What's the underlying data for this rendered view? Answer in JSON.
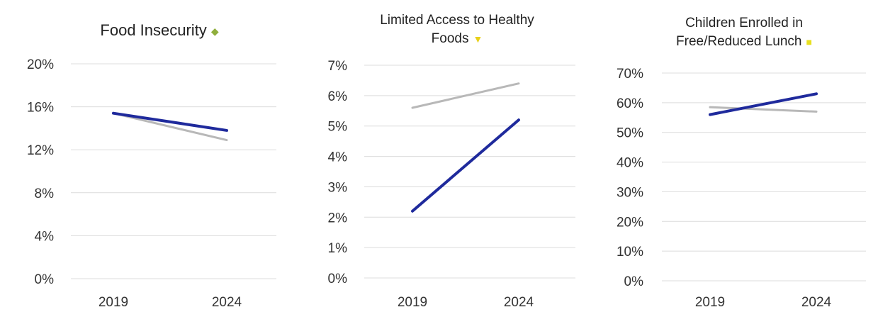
{
  "chart_data": [
    {
      "type": "line",
      "title": "Food Insecurity",
      "title_marker": {
        "glyph": "◆",
        "color": "#8fae3c"
      },
      "categories": [
        "2019",
        "2024"
      ],
      "ytick_labels": [
        "0%",
        "4%",
        "8%",
        "12%",
        "16%",
        "20%"
      ],
      "ylim": [
        0,
        20
      ],
      "grid": true,
      "series": [
        {
          "values": [
            15.4,
            13.8
          ],
          "color": "#1f2a9c"
        },
        {
          "values": [
            15.4,
            12.9
          ],
          "color": "#b8b8b8"
        }
      ]
    },
    {
      "type": "line",
      "title": "Limited Access to Healthy Foods",
      "title_line1": "Limited Access to Healthy",
      "title_line2": "Foods",
      "title_marker": {
        "glyph": "▼",
        "color": "#e8d01a"
      },
      "categories": [
        "2019",
        "2024"
      ],
      "ytick_labels": [
        "0%",
        "1%",
        "2%",
        "3%",
        "4%",
        "5%",
        "6%",
        "7%"
      ],
      "ylim": [
        0,
        7
      ],
      "grid": true,
      "series": [
        {
          "values": [
            2.2,
            5.2
          ],
          "color": "#1f2a9c"
        },
        {
          "values": [
            5.6,
            6.4
          ],
          "color": "#b8b8b8"
        }
      ]
    },
    {
      "type": "line",
      "title": "Children Enrolled in Free/Reduced Lunch",
      "title_line1": "Children Enrolled in",
      "title_line2": "Free/Reduced Lunch",
      "title_marker": {
        "glyph": "■",
        "color": "#e8e020"
      },
      "categories": [
        "2019",
        "2024"
      ],
      "ytick_labels": [
        "0%",
        "10%",
        "20%",
        "30%",
        "40%",
        "50%",
        "60%",
        "70%"
      ],
      "ylim": [
        0,
        70
      ],
      "grid": true,
      "series": [
        {
          "values": [
            56,
            63
          ],
          "color": "#1f2a9c"
        },
        {
          "values": [
            58.5,
            57
          ],
          "color": "#b8b8b8"
        }
      ]
    }
  ]
}
